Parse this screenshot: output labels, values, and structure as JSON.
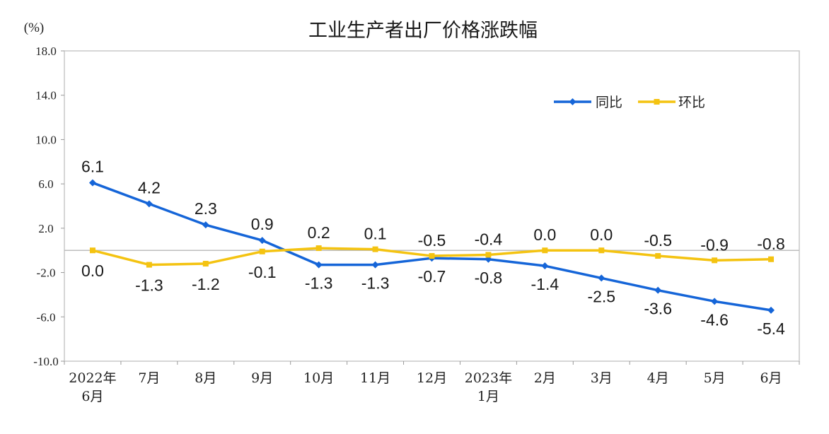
{
  "chart_data": {
    "type": "line",
    "title": "工业生产者出厂价格涨跌幅",
    "unit": "(%)",
    "ylim": [
      -10,
      18
    ],
    "yticks": [
      "18.0",
      "14.0",
      "10.0",
      "6.0",
      "2.0",
      "-2.0",
      "-6.0",
      "-10.0"
    ],
    "ytick_values": [
      18,
      14,
      10,
      6,
      2,
      -2,
      -6,
      -10
    ],
    "categories": [
      [
        "2022年",
        "6月"
      ],
      [
        "7月"
      ],
      [
        "8月"
      ],
      [
        "9月"
      ],
      [
        "10月"
      ],
      [
        "11月"
      ],
      [
        "12月"
      ],
      [
        "2023年",
        "1月"
      ],
      [
        "2月"
      ],
      [
        "3月"
      ],
      [
        "4月"
      ],
      [
        "5月"
      ],
      [
        "6月"
      ]
    ],
    "series": [
      {
        "name": "同比",
        "color": "#1565d8",
        "values": [
          6.1,
          4.2,
          2.3,
          0.9,
          -1.3,
          -1.3,
          -0.7,
          -0.8,
          -1.4,
          -2.5,
          -3.6,
          -4.6,
          -5.4
        ],
        "labels": [
          "6.1",
          "4.2",
          "2.3",
          "0.9",
          "-1.3",
          "-1.3",
          "-0.7",
          "-0.8",
          "-1.4",
          "-2.5",
          "-3.6",
          "-4.6",
          "-5.4"
        ],
        "marker": "diamond"
      },
      {
        "name": "环比",
        "color": "#f4c311",
        "values": [
          0.0,
          -1.3,
          -1.2,
          -0.1,
          0.2,
          0.1,
          -0.5,
          -0.4,
          0.0,
          0.0,
          -0.5,
          -0.9,
          -0.8
        ],
        "labels": [
          "0.0",
          "-1.3",
          "-1.2",
          "-0.1",
          "0.2",
          "0.1",
          "-0.5",
          "-0.4",
          "0.0",
          "0.0",
          "-0.5",
          "-0.9",
          "-0.8"
        ],
        "marker": "square"
      }
    ],
    "legend": [
      "同比",
      "环比"
    ],
    "legend_position": "top-right"
  }
}
